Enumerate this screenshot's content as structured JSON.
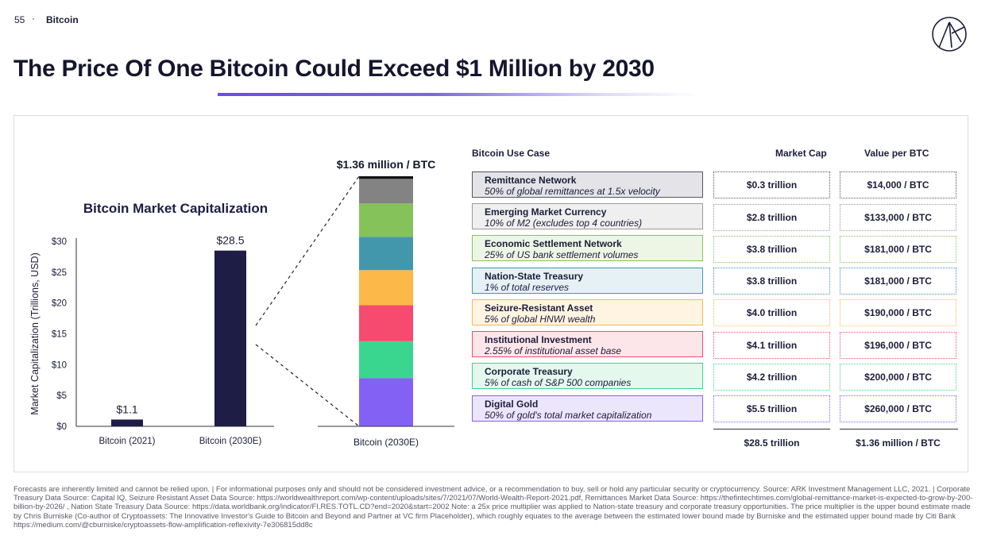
{
  "header": {
    "page_number": "55",
    "separator": "·",
    "section": "Bitcoin"
  },
  "title": "The Price Of One Bitcoin Could Exceed $1 Million by 2030",
  "chart_data": [
    {
      "type": "bar",
      "title": "Bitcoin Market Capitalization",
      "ylabel": "Market Capitalization (Trillions, USD)",
      "xlabel": "",
      "categories": [
        "Bitcoin (2021)",
        "Bitcoin (2030E)"
      ],
      "values": [
        1.1,
        28.5
      ],
      "data_labels": [
        "$1.1",
        "$28.5"
      ],
      "ylim": [
        0,
        30
      ],
      "yticks": [
        0,
        5,
        10,
        15,
        20,
        25,
        30
      ],
      "ytick_labels": [
        "$0",
        "$5",
        "$10",
        "$15",
        "$20",
        "$25",
        "$30"
      ],
      "bar_color": "#1e1d45",
      "grid": false,
      "legend": "none"
    },
    {
      "type": "bar",
      "stacked": true,
      "title": "$1.36 million / BTC",
      "categories": [
        "Bitcoin (2030E)"
      ],
      "total": 28.5,
      "series": [
        {
          "value": 5.5,
          "color": "#8361f5"
        },
        {
          "value": 4.2,
          "color": "#3ad68f"
        },
        {
          "value": 4.1,
          "color": "#f64a6e"
        },
        {
          "value": 4.0,
          "color": "#fcb94a"
        },
        {
          "value": 3.8,
          "color": "#4397ad"
        },
        {
          "value": 3.8,
          "color": "#86c25a"
        },
        {
          "value": 2.8,
          "color": "#838383"
        },
        {
          "value": 0.3,
          "color": "#111111"
        }
      ],
      "legend": "none"
    }
  ],
  "table": {
    "headers": {
      "use_case": "Bitcoin Use Case",
      "market_cap": "Market Cap",
      "value_per_btc": "Value per BTC"
    },
    "rows": [
      {
        "name": "Remittance Network",
        "desc": "50% of global remittances at 1.5x velocity",
        "market_cap": "$0.3 trillion",
        "value": "$14,000 / BTC",
        "fill": "#e3e3e8",
        "border": "#555560"
      },
      {
        "name": "Emerging Market Currency",
        "desc": "10% of M2 (excludes top 4 countries)",
        "market_cap": "$2.8 trillion",
        "value": "$133,000 / BTC",
        "fill": "#efefef",
        "border": "#9a9a9a"
      },
      {
        "name": "Economic Settlement Network",
        "desc": "25% of US bank settlement volumes",
        "market_cap": "$3.8 trillion",
        "value": "$181,000 / BTC",
        "fill": "#edf6e5",
        "border": "#86c25a"
      },
      {
        "name": "Nation-State Treasury",
        "desc": "1% of total reserves",
        "market_cap": "$3.8 trillion",
        "value": "$181,000 / BTC",
        "fill": "#e5f1f4",
        "border": "#4397ad"
      },
      {
        "name": "Seizure-Resistant Asset",
        "desc": "5% of global HNWI wealth",
        "market_cap": "$4.0 trillion",
        "value": "$190,000 / BTC",
        "fill": "#fff4e2",
        "border": "#fcb94a"
      },
      {
        "name": "Institutional Investment",
        "desc": "2.55% of institutional asset base",
        "market_cap": "$4.1 trillion",
        "value": "$196,000 / BTC",
        "fill": "#fde6ea",
        "border": "#f64a6e"
      },
      {
        "name": "Corporate Treasury",
        "desc": "5% of cash of S&P 500 companies",
        "market_cap": "$4.2 trillion",
        "value": "$200,000 / BTC",
        "fill": "#e4f8ee",
        "border": "#3ad68f"
      },
      {
        "name": "Digital Gold",
        "desc": "50% of gold's total market capitalization",
        "market_cap": "$5.5 trillion",
        "value": "$260,000 / BTC",
        "fill": "#ece6fd",
        "border": "#8361f5"
      }
    ],
    "totals": {
      "market_cap": "$28.5 trillion",
      "value": "$1.36 million / BTC"
    }
  },
  "footnote": "Forecasts are inherently limited and cannot be relied upon. | For informational purposes only and should not be considered investment advice, or a recommendation to buy, sell or hold any particular security or cryptocurrency. Source: ARK Investment Management LLC, 2021. | Corporate Treasury Data Source: Capital IQ, Seizure Resistant Asset Data Source: https://worldwealthreport.com/wp-content/uploads/sites/7/2021/07/World-Wealth-Report-2021.pdf, Remittances Market Data Source: https://thefintechtimes.com/global-remittance-market-is-expected-to-grow-by-200-billion-by-2026/ , Nation State Treasury Data Source: https://data.worldbank.org/indicator/FI.RES.TOTL.CD?end=2020&start=2002 Note: a 25x price multiplier was applied to Nation-state treasury and corporate treasury opportunities. The price multiplier is  the upper bound estimate made by Chris Burniske (Co-author of Cryptoassets: The Innovative Investor's Guide to Bitcoin and Beyond and Partner at VC firm Placeholder), which roughly equates to the average between the estimated lower bound made by Burniske and the estimated upper bound made by Citi Bank https://medium.com/@cburniske/cryptoassets-flow-amplification-reflexivity-7e306815dd8c"
}
